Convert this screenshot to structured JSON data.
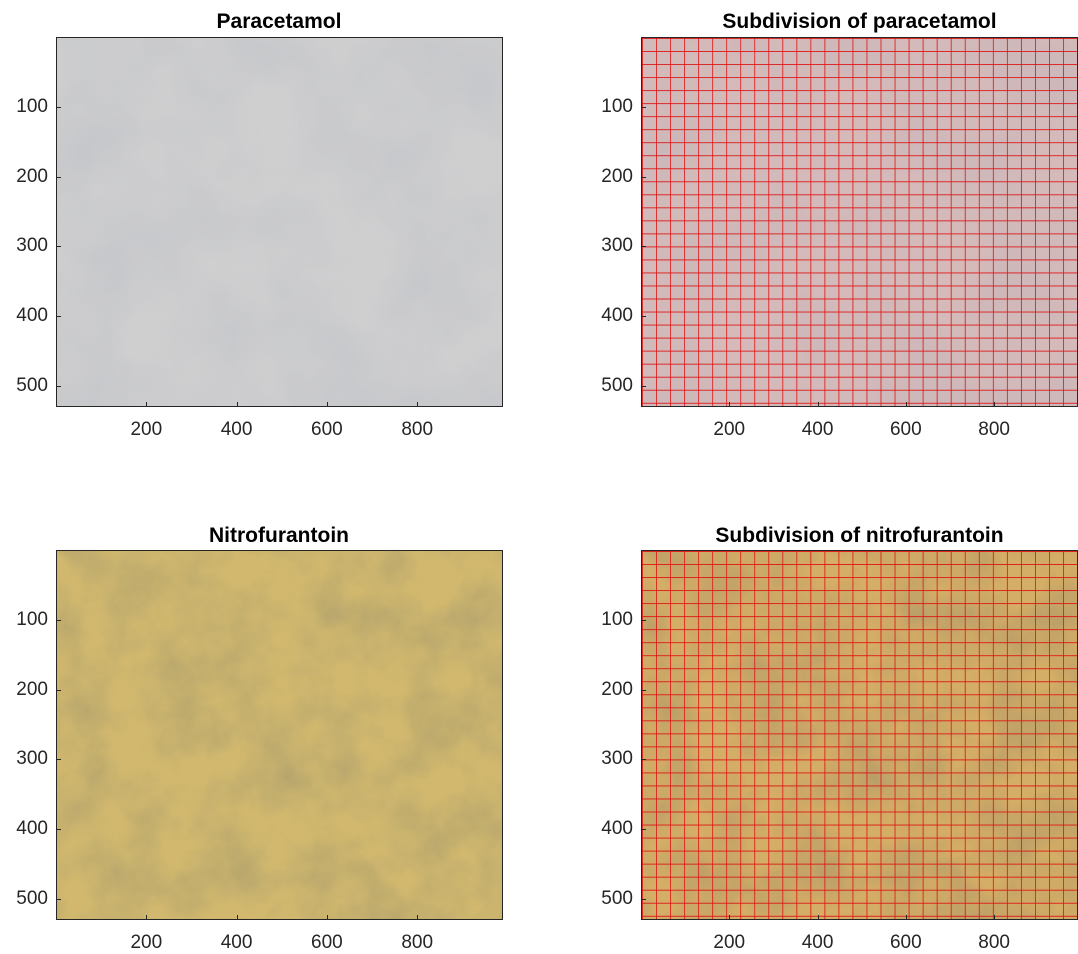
{
  "figure": {
    "panels": [
      {
        "id": "paracetamol",
        "title": "Paracetamol",
        "image_description_icon": "powder-image",
        "base_color": "#cfcfcf",
        "grid": false,
        "xticks": [
          "200",
          "400",
          "600",
          "800"
        ],
        "yticks": [
          "100",
          "200",
          "300",
          "400",
          "500"
        ]
      },
      {
        "id": "subdivision-paracetamol",
        "title": "Subdivision of paracetamol",
        "image_description_icon": "powder-image",
        "base_color": "#d3b8b8",
        "grid": true,
        "grid_color": "#e01010",
        "xticks": [
          "200",
          "400",
          "600",
          "800"
        ],
        "yticks": [
          "100",
          "200",
          "300",
          "400",
          "500"
        ]
      },
      {
        "id": "nitrofurantoin",
        "title": "Nitrofurantoin",
        "image_description_icon": "powder-image",
        "base_color": "#cdb56a",
        "grid": false,
        "xticks": [
          "200",
          "400",
          "600",
          "800"
        ],
        "yticks": [
          "100",
          "200",
          "300",
          "400",
          "500"
        ]
      },
      {
        "id": "subdivision-nitrofurantoin",
        "title": "Subdivision of nitrofurantoin",
        "image_description_icon": "powder-image",
        "base_color": "#d2a864",
        "grid": true,
        "grid_color": "#e01010",
        "xticks": [
          "200",
          "400",
          "600",
          "800"
        ],
        "yticks": [
          "100",
          "200",
          "300",
          "400",
          "500"
        ]
      }
    ]
  }
}
